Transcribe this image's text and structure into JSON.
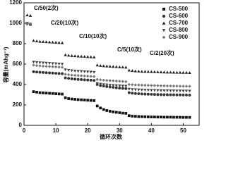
{
  "chart_data": {
    "type": "scatter",
    "y_label": "容量(mAhg⁻¹)",
    "x_label": "循环次数",
    "annotations": [
      "C/50(2次)",
      "C/20(10次)",
      "C/10(10次)",
      "C/5(10次)",
      "C/2(20次)"
    ],
    "x": [
      1,
      2,
      3,
      4,
      5,
      6,
      7,
      8,
      9,
      10,
      11,
      12,
      13,
      14,
      15,
      16,
      17,
      18,
      19,
      20,
      21,
      22,
      23,
      24,
      25,
      26,
      27,
      28,
      29,
      30,
      31,
      32,
      33,
      34,
      35,
      36,
      37,
      38,
      39,
      40,
      41,
      42,
      43,
      44,
      45,
      46,
      47,
      48,
      49,
      50,
      51,
      52
    ],
    "xlim": [
      0,
      55
    ],
    "xticks": [
      0,
      10,
      20,
      30,
      40,
      50
    ],
    "ylim": [
      0,
      1200
    ],
    "yticks": [
      0,
      200,
      400,
      600,
      800,
      1000,
      1200
    ],
    "legend": "upper right",
    "series": [
      {
        "name": "CS-500",
        "color": "#111111",
        "marker": "square",
        "values": [
          1000,
          990,
          330,
          325,
          320,
          318,
          316,
          314,
          312,
          310,
          308,
          306,
          270,
          262,
          258,
          255,
          252,
          250,
          248,
          246,
          244,
          242,
          190,
          170,
          155,
          145,
          138,
          132,
          128,
          124,
          120,
          118,
          95,
          90,
          88,
          86,
          85,
          84,
          83,
          82,
          82,
          81,
          81,
          80,
          80,
          80,
          79,
          79,
          79,
          78,
          78,
          78
        ]
      },
      {
        "name": "CS-600",
        "color": "#333333",
        "marker": "circle",
        "values": [
          1000,
          990,
          525,
          522,
          520,
          518,
          516,
          514,
          512,
          510,
          508,
          506,
          465,
          460,
          456,
          453,
          450,
          448,
          446,
          444,
          442,
          440,
          400,
          390,
          385,
          380,
          376,
          372,
          368,
          365,
          362,
          360,
          320,
          315,
          312,
          310,
          308,
          306,
          305,
          304,
          303,
          302,
          301,
          300,
          300,
          299,
          299,
          298,
          298,
          297,
          297,
          296
        ]
      },
      {
        "name": "CS-700",
        "color": "#222222",
        "marker": "triangle-up",
        "values": [
          1080,
          1075,
          830,
          825,
          822,
          820,
          818,
          816,
          814,
          812,
          810,
          808,
          690,
          685,
          682,
          680,
          678,
          676,
          674,
          672,
          670,
          668,
          590,
          585,
          582,
          580,
          578,
          576,
          574,
          572,
          570,
          568,
          540,
          535,
          532,
          530,
          528,
          527,
          526,
          525,
          524,
          523,
          522,
          521,
          520,
          520,
          519,
          518,
          518,
          517,
          517,
          516
        ]
      },
      {
        "name": "CS-800",
        "color": "#444444",
        "marker": "triangle-down",
        "values": [
          990,
          985,
          620,
          616,
          614,
          612,
          610,
          608,
          606,
          604,
          602,
          600,
          545,
          540,
          536,
          533,
          530,
          528,
          526,
          524,
          522,
          520,
          410,
          404,
          400,
          397,
          394,
          392,
          390,
          388,
          386,
          384,
          355,
          352,
          350,
          348,
          347,
          346,
          345,
          344,
          343,
          342,
          341,
          340,
          340,
          339,
          339,
          338,
          338,
          337,
          337,
          336
        ]
      },
      {
        "name": "CS-900",
        "color": "#777777",
        "marker": "diamond",
        "values": [
          1000,
          995,
          590,
          585,
          582,
          580,
          578,
          576,
          574,
          572,
          570,
          568,
          500,
          496,
          492,
          490,
          488,
          486,
          484,
          482,
          480,
          478,
          450,
          446,
          443,
          440,
          438,
          436,
          434,
          432,
          430,
          428,
          400,
          398,
          396,
          395,
          394,
          393,
          392,
          391,
          390,
          389,
          388,
          387,
          386,
          386,
          385,
          385,
          384,
          384,
          383,
          383
        ]
      }
    ]
  }
}
